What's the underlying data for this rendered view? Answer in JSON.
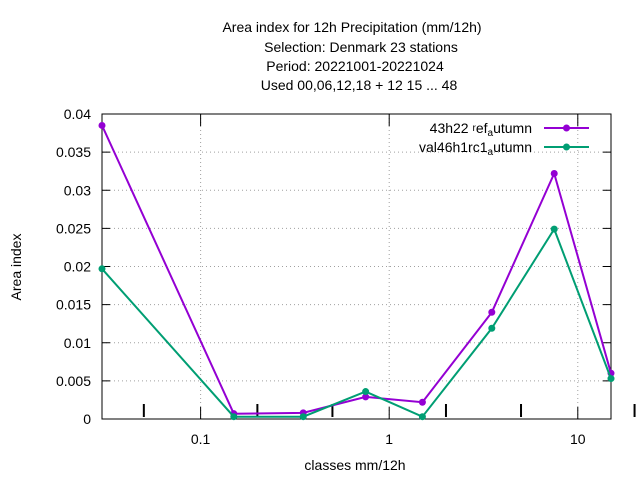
{
  "chart_data": {
    "type": "line",
    "title_lines": [
      "Area index  for 12h Precipitation (mm/12h)",
      "Selection: Denmark     23 stations",
      "Period: 20221001-20221024",
      "Used  00,06,12,18  + 12 15 ... 48"
    ],
    "xlabel": "classes mm/12h",
    "ylabel": "Area index",
    "x_scale": "log",
    "xlim": [
      0.03,
      15
    ],
    "ylim": [
      0,
      0.04
    ],
    "grid": true,
    "legend_position": "top-right",
    "x_tick_labels": [
      "0.1",
      "1",
      "10"
    ],
    "y_tick_labels": [
      "0",
      "0.005",
      "0.01",
      "0.015",
      "0.02",
      "0.025",
      "0.03",
      "0.035",
      "0.04"
    ],
    "x": [
      0.03,
      0.15,
      0.35,
      0.75,
      1.5,
      3.5,
      7.5,
      15
    ],
    "series": [
      {
        "name": "43h22 ref autumn",
        "legend_parts": [
          "43h22 ",
          "r",
          "ef",
          "a",
          "utumn"
        ],
        "color": "#9400d3",
        "values": [
          0.0385,
          0.0007,
          0.0008,
          0.0029,
          0.0022,
          0.014,
          0.0322,
          0.006
        ]
      },
      {
        "name": "val46h1rc1 autumn",
        "legend_parts": [
          "val46h1rc1",
          "",
          "",
          "a",
          "utumn"
        ],
        "color": "#009e73",
        "values": [
          0.0197,
          0.0003,
          0.0003,
          0.0036,
          0.0003,
          0.0119,
          0.0249,
          0.0053
        ]
      }
    ]
  }
}
